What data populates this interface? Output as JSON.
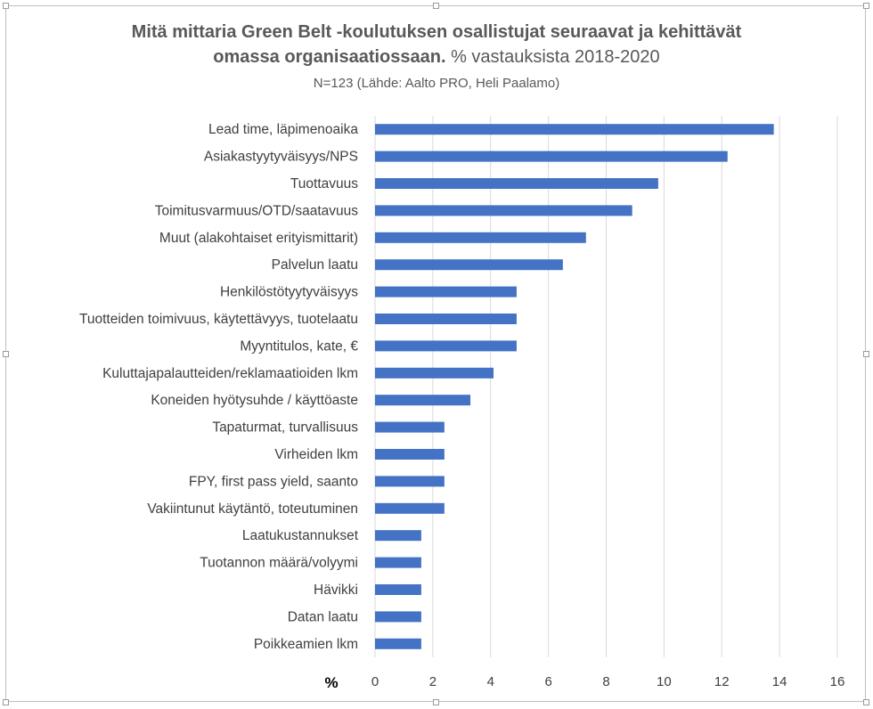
{
  "title": {
    "line1": "Mitä mittaria Green Belt -koulutuksen osallistujat seuraavat ja kehittävät",
    "line2_bold": "omassa organisaatiossaan.",
    "line2_rest": " % vastauksista 2018-2020",
    "subtitle": "N=123 (Lähde: Aalto PRO, Heli Paalamo)"
  },
  "chart_data": {
    "type": "bar",
    "orientation": "horizontal",
    "categories": [
      "Lead time, läpimenoaika",
      "Asiakastyytyväisyys/NPS",
      "Tuottavuus",
      "Toimitusvarmuus/OTD/saatavuus",
      "Muut (alakohtaiset erityismittarit)",
      "Palvelun laatu",
      "Henkilöstötyytyväisyys",
      "Tuotteiden toimivuus, käytettävyys, tuotelaatu",
      "Myyntitulos, kate, €",
      "Kuluttajapalautteiden/reklamaatioiden lkm",
      "Koneiden hyötysuhde / käyttöaste",
      "Tapaturmat, turvallisuus",
      "Virheiden lkm",
      "FPY, first pass yield, saanto",
      "Vakiintunut käytäntö, toteutuminen",
      "Laatukustannukset",
      "Tuotannon määrä/volyymi",
      "Hävikki ",
      "Datan laatu",
      "Poikkeamien lkm"
    ],
    "values": [
      13.8,
      12.2,
      9.8,
      8.9,
      7.3,
      6.5,
      4.9,
      4.9,
      4.9,
      4.1,
      3.3,
      2.4,
      2.4,
      2.4,
      2.4,
      1.6,
      1.6,
      1.6,
      1.6,
      1.6
    ],
    "xlabel": "%",
    "xlim": [
      0,
      16
    ],
    "xticks": [
      0,
      2,
      4,
      6,
      8,
      10,
      12,
      14,
      16
    ],
    "grid": "vertical",
    "legend": "none",
    "bar_color": "#4472c4",
    "grid_color": "#d9d9d9"
  }
}
